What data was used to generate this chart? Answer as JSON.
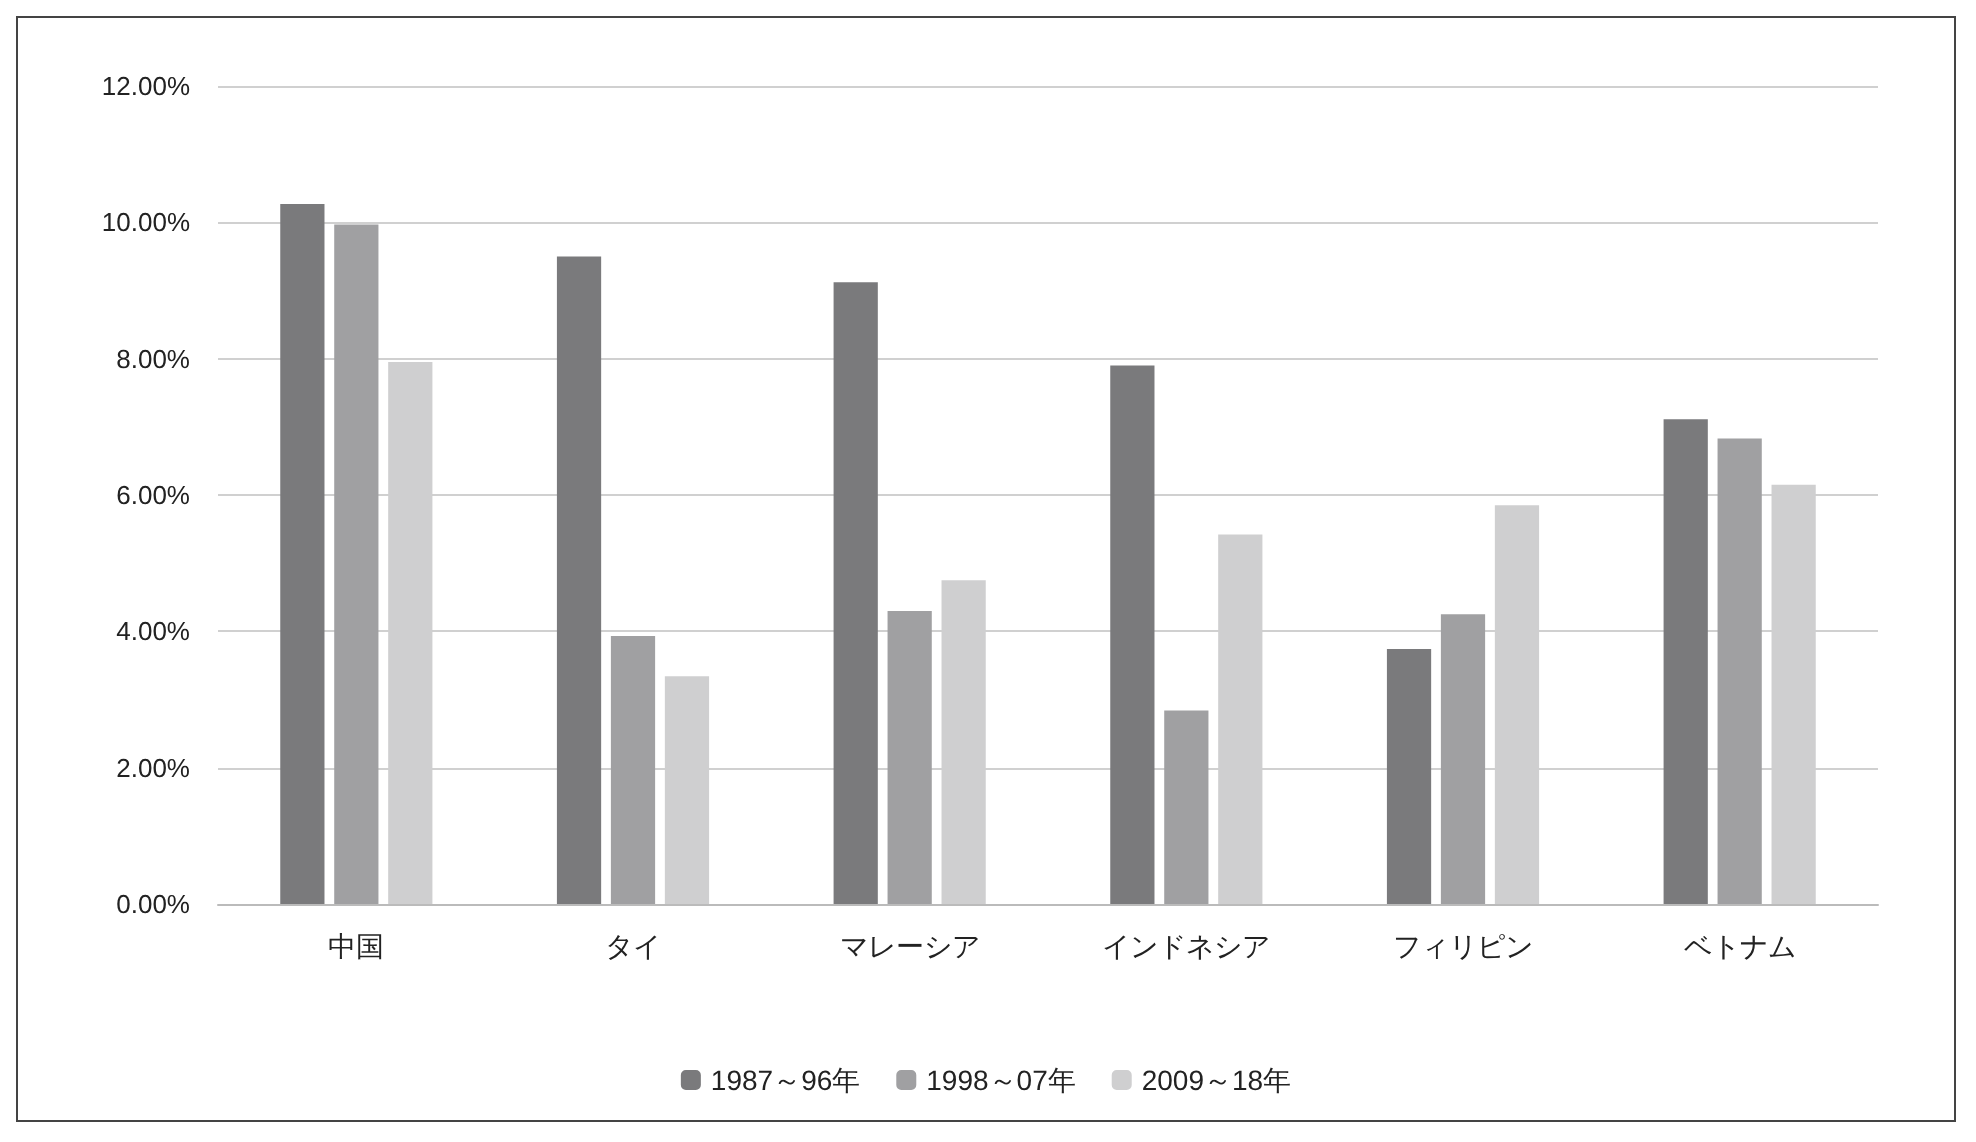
{
  "chart_data": {
    "type": "bar",
    "categories": [
      "中国",
      "タイ",
      "マレーシア",
      "インドネシア",
      "フィリピン",
      "ベトナム"
    ],
    "series": [
      {
        "name": "1987～96年",
        "color": "#7a7a7c",
        "values": [
          10.27,
          9.5,
          9.12,
          7.9,
          3.74,
          7.11
        ]
      },
      {
        "name": "1998～07年",
        "color": "#a0a0a2",
        "values": [
          9.97,
          3.93,
          4.3,
          2.84,
          4.25,
          6.83
        ]
      },
      {
        "name": "2009～18年",
        "color": "#cfcfd0",
        "values": [
          7.95,
          3.34,
          4.75,
          5.42,
          5.85,
          6.15
        ]
      }
    ],
    "ylim": [
      0,
      12
    ],
    "yticks": [
      {
        "value": 0,
        "label": "0.00%"
      },
      {
        "value": 2,
        "label": "2.00%"
      },
      {
        "value": 4,
        "label": "4.00%"
      },
      {
        "value": 6,
        "label": "6.00%"
      },
      {
        "value": 8,
        "label": "8.00%"
      },
      {
        "value": 10,
        "label": "10.00%"
      },
      {
        "value": 12,
        "label": "12.00%"
      }
    ],
    "grid": "y",
    "legend": "bottom"
  }
}
